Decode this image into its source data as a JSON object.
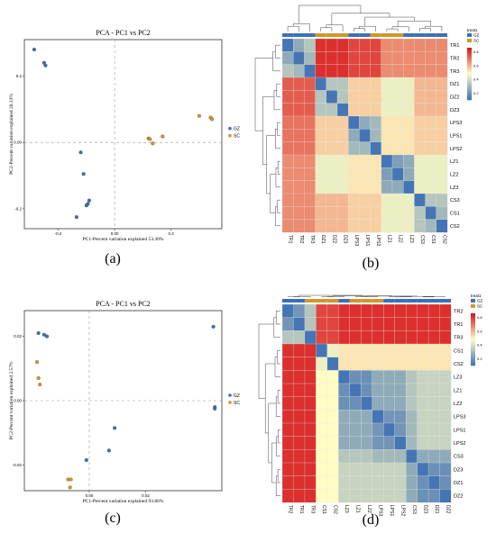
{
  "colors": {
    "gz": "#3d6fb6",
    "sc": "#cc9a2a",
    "hm_lo": "#4575b4",
    "hm_mid": "#fffcc4",
    "hm_hi": "#d7191c"
  },
  "panel_labels": {
    "a": "(a)",
    "b": "(b)",
    "c": "(c)",
    "d": "(d)"
  },
  "chart_data": [
    {
      "id": "a",
      "type": "scatter",
      "title": "PCA - PC1 vs PC2",
      "xlabel": "PC1-Percent variation explained 53.30%",
      "ylabel": "PC2-Percent variation explained 28.33%",
      "xlim": [
        -0.32,
        0.38
      ],
      "ylim": [
        -0.26,
        0.31
      ],
      "xticks": [
        {
          "v": -0.2,
          "t": "-0.2"
        },
        {
          "v": 0,
          "t": "0.00"
        },
        {
          "v": 0.2,
          "t": "0.2"
        }
      ],
      "yticks": [
        {
          "v": 0.2,
          "t": "0.2"
        },
        {
          "v": 0,
          "t": "0.00"
        },
        {
          "v": -0.2,
          "t": "-0.2"
        }
      ],
      "legend": [
        "GZ",
        "SC"
      ],
      "series": [
        {
          "name": "GZ",
          "color": "#3d6fb6",
          "points": [
            [
              -0.285,
              0.28
            ],
            [
              -0.25,
              0.24
            ],
            [
              -0.245,
              0.232
            ],
            [
              -0.12,
              -0.03
            ],
            [
              -0.11,
              -0.095
            ],
            [
              -0.09,
              -0.175
            ],
            [
              -0.095,
              -0.185
            ],
            [
              -0.1,
              -0.19
            ],
            [
              -0.135,
              -0.225
            ]
          ]
        },
        {
          "name": "SC",
          "color": "#cc9a2a",
          "points": [
            [
              0.34,
              0.075
            ],
            [
              0.345,
              0.07
            ],
            [
              0.3,
              0.08
            ],
            [
              0.12,
              0.012
            ],
            [
              0.135,
              -0.003
            ],
            [
              0.17,
              0.018
            ],
            [
              0.125,
              0.01
            ]
          ]
        }
      ]
    },
    {
      "id": "c",
      "type": "scatter",
      "title": "PCA - PC1 vs PC2",
      "xlabel": "PC1-Percent variation explained 93.86%",
      "ylabel": "PC2-Percent variation explained 2.57%",
      "xlim": [
        -0.023,
        0.047
      ],
      "ylim": [
        -0.028,
        0.028
      ],
      "xticks": [
        {
          "v": 0,
          "t": "0.00"
        },
        {
          "v": 0.02,
          "t": "0.02"
        }
      ],
      "yticks": [
        {
          "v": 0.02,
          "t": "0.02"
        },
        {
          "v": 0,
          "t": "0.00"
        },
        {
          "v": -0.02,
          "t": "-0.02"
        }
      ],
      "legend": [
        "GZ",
        "SC"
      ],
      "series": [
        {
          "name": "GZ",
          "color": "#3d6fb6",
          "points": [
            [
              -0.018,
              0.021
            ],
            [
              -0.016,
              0.0205
            ],
            [
              -0.015,
              0.02
            ],
            [
              0.044,
              0.023
            ],
            [
              0.0445,
              -0.002
            ],
            [
              0.0445,
              -0.0025
            ],
            [
              0.009,
              -0.0085
            ],
            [
              0.007,
              -0.0155
            ],
            [
              -0.001,
              -0.0185
            ]
          ]
        },
        {
          "name": "SC",
          "color": "#cc9a2a",
          "points": [
            [
              -0.0185,
              0.012
            ],
            [
              -0.018,
              0.007
            ],
            [
              -0.0175,
              0.005
            ],
            [
              -0.0075,
              -0.0245
            ],
            [
              -0.0065,
              -0.0245
            ],
            [
              -0.0068,
              -0.027
            ]
          ]
        }
      ]
    },
    {
      "id": "b",
      "type": "heatmap",
      "legend_title": "treat1",
      "legend_groups": [
        "GZ",
        "SC"
      ],
      "scale_ticks": [
        "0.8",
        "0.6",
        "0.4",
        "0.2"
      ],
      "rows": [
        "TR1",
        "TR2",
        "TR3",
        "DZ1",
        "DZ2",
        "DZ3",
        "LPS3",
        "LPS1",
        "LPS2",
        "LZ1",
        "LZ2",
        "LZ3",
        "CS3",
        "CS1",
        "CS2"
      ],
      "cols": [
        "TR1",
        "TR2",
        "TR3",
        "DZ1",
        "DZ2",
        "DZ3",
        "LPS3",
        "LPS1",
        "LPS2",
        "LZ1",
        "LZ2",
        "LZ3",
        "CS3",
        "CS1",
        "CS2"
      ],
      "col_group": [
        "GZ",
        "GZ",
        "GZ",
        "SC",
        "SC",
        "SC",
        "GZ",
        "GZ",
        "SC",
        "SC",
        "SC",
        "GZ",
        "GZ",
        "GZ",
        "GZ"
      ],
      "matrix": [
        [
          0,
          0.2,
          0.3,
          0.95,
          0.95,
          0.95,
          0.9,
          0.9,
          0.9,
          0.75,
          0.75,
          0.75,
          0.75,
          0.75,
          0.75
        ],
        [
          0.2,
          0,
          0.25,
          0.95,
          0.95,
          0.95,
          0.9,
          0.9,
          0.9,
          0.75,
          0.75,
          0.75,
          0.75,
          0.75,
          0.75
        ],
        [
          0.3,
          0.25,
          0,
          0.95,
          0.95,
          0.95,
          0.9,
          0.9,
          0.9,
          0.75,
          0.75,
          0.75,
          0.75,
          0.75,
          0.75
        ],
        [
          0.85,
          0.85,
          0.85,
          0,
          0.3,
          0.3,
          0.6,
          0.6,
          0.6,
          0.45,
          0.45,
          0.45,
          0.65,
          0.65,
          0.65
        ],
        [
          0.85,
          0.85,
          0.85,
          0.3,
          0,
          0.3,
          0.6,
          0.6,
          0.6,
          0.45,
          0.45,
          0.45,
          0.65,
          0.65,
          0.65
        ],
        [
          0.85,
          0.85,
          0.85,
          0.3,
          0.3,
          0,
          0.6,
          0.6,
          0.6,
          0.45,
          0.45,
          0.45,
          0.65,
          0.65,
          0.65
        ],
        [
          0.8,
          0.8,
          0.8,
          0.6,
          0.6,
          0.6,
          0,
          0.2,
          0.25,
          0.55,
          0.55,
          0.55,
          0.6,
          0.6,
          0.6
        ],
        [
          0.8,
          0.8,
          0.8,
          0.6,
          0.6,
          0.6,
          0.2,
          0,
          0.25,
          0.55,
          0.55,
          0.55,
          0.6,
          0.6,
          0.6
        ],
        [
          0.8,
          0.8,
          0.8,
          0.6,
          0.6,
          0.6,
          0.25,
          0.25,
          0,
          0.55,
          0.55,
          0.55,
          0.6,
          0.6,
          0.6
        ],
        [
          0.75,
          0.75,
          0.75,
          0.45,
          0.45,
          0.45,
          0.55,
          0.55,
          0.55,
          0,
          0.15,
          0.2,
          0.45,
          0.45,
          0.45
        ],
        [
          0.75,
          0.75,
          0.75,
          0.45,
          0.45,
          0.45,
          0.55,
          0.55,
          0.55,
          0.15,
          0,
          0.2,
          0.45,
          0.45,
          0.45
        ],
        [
          0.75,
          0.75,
          0.75,
          0.45,
          0.45,
          0.45,
          0.55,
          0.55,
          0.55,
          0.2,
          0.2,
          0,
          0.45,
          0.45,
          0.45
        ],
        [
          0.75,
          0.75,
          0.75,
          0.65,
          0.65,
          0.65,
          0.6,
          0.6,
          0.6,
          0.45,
          0.45,
          0.45,
          0,
          0.3,
          0.3
        ],
        [
          0.75,
          0.75,
          0.75,
          0.65,
          0.65,
          0.65,
          0.6,
          0.6,
          0.6,
          0.45,
          0.45,
          0.45,
          0.3,
          0,
          0.25
        ],
        [
          0.75,
          0.75,
          0.75,
          0.65,
          0.65,
          0.65,
          0.6,
          0.6,
          0.6,
          0.45,
          0.45,
          0.45,
          0.3,
          0.25,
          0
        ]
      ]
    },
    {
      "id": "d",
      "type": "heatmap",
      "legend_title": "treat1",
      "legend_groups": [
        "GZ",
        "SC"
      ],
      "scale_ticks": [
        "0.8",
        "0.6",
        "0.4",
        "0.2"
      ],
      "rows": [
        "TR2",
        "TR1",
        "TR3",
        "CS1",
        "CS2",
        "LZ3",
        "LZ1",
        "LZ2",
        "LPS3",
        "LPS1",
        "LPS2",
        "CS3",
        "DZ3",
        "DZ1",
        "DZ2"
      ],
      "cols": [
        "TR2",
        "TR1",
        "TR3",
        "CS1",
        "CS2",
        "LZ3",
        "LZ1",
        "LZ2",
        "LPS3",
        "LPS1",
        "LPS2",
        "CS3",
        "DZ3",
        "DZ1",
        "DZ2"
      ],
      "col_group": [
        "GZ",
        "GZ",
        "SC",
        "SC",
        "SC",
        "GZ",
        "SC",
        "SC",
        "SC",
        "GZ",
        "GZ",
        "GZ",
        "GZ",
        "GZ",
        "GZ"
      ],
      "matrix": [
        [
          0,
          0.12,
          0.3,
          0.9,
          0.9,
          0.95,
          0.95,
          0.95,
          0.95,
          0.95,
          0.95,
          0.95,
          0.95,
          0.95,
          0.95
        ],
        [
          0.12,
          0,
          0.3,
          0.9,
          0.9,
          0.95,
          0.95,
          0.95,
          0.95,
          0.95,
          0.95,
          0.95,
          0.95,
          0.95,
          0.95
        ],
        [
          0.3,
          0.3,
          0,
          0.9,
          0.9,
          0.95,
          0.95,
          0.95,
          0.95,
          0.95,
          0.95,
          0.95,
          0.95,
          0.95,
          0.95
        ],
        [
          0.95,
          0.95,
          0.95,
          0,
          0.45,
          0.55,
          0.55,
          0.55,
          0.55,
          0.55,
          0.55,
          0.55,
          0.55,
          0.55,
          0.55
        ],
        [
          0.95,
          0.95,
          0.95,
          0.45,
          0,
          0.55,
          0.55,
          0.55,
          0.55,
          0.55,
          0.55,
          0.55,
          0.55,
          0.55,
          0.55
        ],
        [
          0.95,
          0.95,
          0.95,
          0.5,
          0.5,
          0,
          0.1,
          0.1,
          0.2,
          0.2,
          0.2,
          0.3,
          0.35,
          0.35,
          0.35
        ],
        [
          0.95,
          0.95,
          0.95,
          0.5,
          0.5,
          0.1,
          0,
          0.1,
          0.2,
          0.2,
          0.2,
          0.3,
          0.35,
          0.35,
          0.35
        ],
        [
          0.95,
          0.95,
          0.95,
          0.5,
          0.5,
          0.1,
          0.1,
          0,
          0.2,
          0.2,
          0.2,
          0.3,
          0.35,
          0.35,
          0.35
        ],
        [
          0.95,
          0.95,
          0.95,
          0.5,
          0.5,
          0.2,
          0.2,
          0.2,
          0,
          0.12,
          0.12,
          0.25,
          0.35,
          0.35,
          0.35
        ],
        [
          0.95,
          0.95,
          0.95,
          0.5,
          0.5,
          0.2,
          0.2,
          0.2,
          0.12,
          0,
          0.12,
          0.25,
          0.35,
          0.35,
          0.35
        ],
        [
          0.95,
          0.95,
          0.95,
          0.5,
          0.5,
          0.2,
          0.2,
          0.2,
          0.12,
          0.12,
          0,
          0.25,
          0.35,
          0.35,
          0.35
        ],
        [
          0.95,
          0.95,
          0.95,
          0.5,
          0.5,
          0.3,
          0.3,
          0.3,
          0.25,
          0.25,
          0.25,
          0,
          0.2,
          0.2,
          0.2
        ],
        [
          0.95,
          0.95,
          0.95,
          0.5,
          0.5,
          0.35,
          0.35,
          0.35,
          0.35,
          0.35,
          0.35,
          0.2,
          0,
          0.1,
          0.1
        ],
        [
          0.95,
          0.95,
          0.95,
          0.5,
          0.5,
          0.35,
          0.35,
          0.35,
          0.35,
          0.35,
          0.35,
          0.2,
          0.1,
          0,
          0.1
        ],
        [
          0.95,
          0.95,
          0.95,
          0.5,
          0.5,
          0.35,
          0.35,
          0.35,
          0.35,
          0.35,
          0.35,
          0.2,
          0.1,
          0.1,
          0
        ]
      ]
    }
  ]
}
